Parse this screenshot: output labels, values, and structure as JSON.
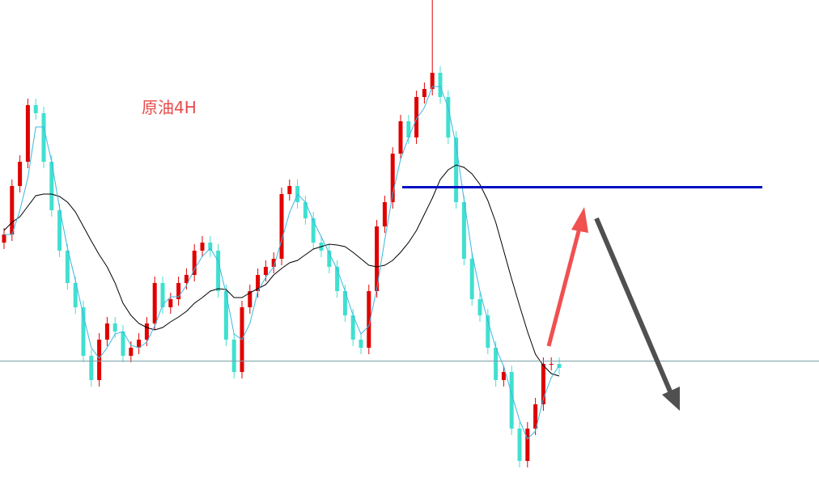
{
  "chart_data": {
    "type": "candlestick",
    "title": "原油4H",
    "up_color": "#e00000",
    "down_color": "#40e0d0",
    "ylim": [
      0,
      601
    ],
    "open": [
      301,
      311,
      371,
      401,
      471,
      461,
      401,
      341,
      291,
      251,
      221,
      161,
      131,
      181,
      201,
      191,
      161,
      171,
      181,
      201,
      251,
      221,
      231,
      251,
      261,
      291,
      301,
      291,
      241,
      181,
      141,
      221,
      241,
      261,
      271,
      281,
      361,
      371,
      351,
      331,
      301,
      291,
      271,
      241,
      211,
      181,
      171,
      241,
      321,
      351,
      411,
      451,
      431,
      481,
      491,
      511,
      481,
      431,
      351,
      281,
      231,
      211,
      171,
      131,
      141,
      71,
      31,
      71,
      101,
      151,
      151
    ],
    "high": [
      319,
      379,
      409,
      479,
      479,
      469,
      409,
      349,
      299,
      259,
      229,
      169,
      189,
      209,
      209,
      199,
      179,
      189,
      209,
      259,
      259,
      239,
      259,
      269,
      299,
      309,
      309,
      299,
      249,
      189,
      229,
      249,
      269,
      279,
      289,
      369,
      379,
      379,
      359,
      339,
      309,
      299,
      279,
      249,
      219,
      189,
      249,
      329,
      359,
      419,
      459,
      459,
      489,
      499,
      601,
      519,
      489,
      439,
      359,
      289,
      239,
      219,
      179,
      149,
      149,
      79,
      79,
      109,
      159,
      159,
      159
    ],
    "low": [
      293,
      303,
      363,
      393,
      453,
      393,
      333,
      283,
      243,
      213,
      153,
      123,
      123,
      173,
      183,
      153,
      153,
      163,
      173,
      193,
      213,
      213,
      223,
      243,
      253,
      283,
      283,
      233,
      173,
      133,
      133,
      213,
      233,
      253,
      263,
      273,
      353,
      343,
      323,
      293,
      283,
      263,
      233,
      203,
      173,
      163,
      163,
      233,
      313,
      343,
      403,
      423,
      423,
      473,
      483,
      473,
      423,
      343,
      273,
      223,
      203,
      163,
      123,
      123,
      63,
      23,
      23,
      63,
      93,
      143,
      138
    ],
    "close": [
      311,
      371,
      401,
      471,
      461,
      401,
      341,
      291,
      251,
      221,
      161,
      131,
      181,
      201,
      191,
      161,
      171,
      181,
      201,
      251,
      221,
      231,
      251,
      261,
      291,
      301,
      291,
      241,
      181,
      141,
      221,
      241,
      261,
      271,
      281,
      361,
      371,
      351,
      331,
      301,
      291,
      271,
      241,
      211,
      181,
      171,
      241,
      321,
      351,
      411,
      451,
      431,
      481,
      491,
      511,
      481,
      431,
      351,
      281,
      231,
      211,
      171,
      131,
      141,
      71,
      31,
      71,
      101,
      151,
      151,
      146
    ],
    "lines": [
      {
        "color": "#000000",
        "values": [
          316,
          326,
          333,
          346,
          359,
          361,
          361,
          358,
          351,
          339,
          321,
          303,
          286,
          271,
          251,
          226,
          211,
          201,
          196,
          193,
          196,
          203,
          209,
          216,
          226,
          233,
          241,
          244,
          243,
          233,
          233,
          239,
          244,
          249,
          261,
          269,
          276,
          279,
          286,
          293,
          296,
          299,
          298,
          296,
          289,
          281,
          273,
          271,
          273,
          279,
          289,
          301,
          316,
          336,
          356,
          379,
          391,
          397,
          394,
          386,
          373,
          353,
          326,
          291,
          256,
          223,
          191,
          163,
          149,
          139,
          136
        ]
      },
      {
        "color": "#3bb8e0",
        "values": [
          311,
          311,
          341,
          381,
          444,
          444,
          401,
          344,
          294,
          254,
          211,
          171,
          158,
          171,
          188,
          191,
          174,
          171,
          178,
          198,
          224,
          234,
          234,
          248,
          268,
          284,
          294,
          278,
          238,
          188,
          181,
          201,
          241,
          258,
          271,
          304,
          338,
          361,
          351,
          328,
          308,
          288,
          268,
          241,
          211,
          188,
          198,
          244,
          304,
          361,
          404,
          431,
          454,
          468,
          494,
          494,
          468,
          421,
          354,
          288,
          241,
          204,
          171,
          148,
          114,
          81,
          58,
          68,
          108,
          134,
          149
        ]
      }
    ]
  }
}
